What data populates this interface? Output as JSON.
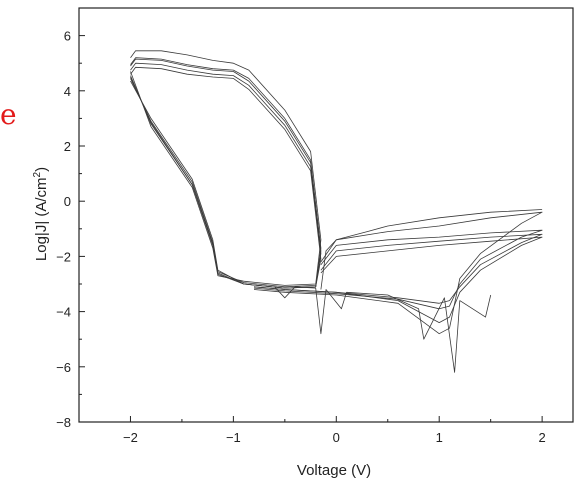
{
  "chart_data": {
    "type": "line",
    "title": "",
    "xlabel": "Voltage (V)",
    "ylabel_main": "Log|J| (A/cm",
    "ylabel_sup": "2",
    "ylabel_close": ")",
    "xlim": [
      -2.5,
      2.3
    ],
    "ylim": [
      -8,
      7
    ],
    "xticks": [
      -2,
      -1,
      0,
      1,
      2
    ],
    "xtick_labels": [
      "−2",
      "−1",
      "0",
      "1",
      "2"
    ],
    "yticks": [
      6,
      4,
      2,
      0,
      -2,
      -4,
      -6,
      -8
    ],
    "ytick_labels": [
      "6",
      "4",
      "2",
      "0",
      "−2",
      "−4",
      "−6",
      "−8"
    ],
    "grid": false,
    "legend": "none",
    "stray_text": "e",
    "series": [
      {
        "x": [
          -2,
          -1.95,
          -1.7,
          -1.45,
          -1.2,
          -1.0,
          -0.85,
          -0.5,
          -0.25,
          -0.15,
          -0.2,
          -0.5,
          -0.9,
          -1.15,
          -1.2,
          -1.4,
          -1.8,
          -2.0
        ],
        "y": [
          4.9,
          5.15,
          5.1,
          4.9,
          4.75,
          4.7,
          4.35,
          2.9,
          1.4,
          -1.7,
          -3.1,
          -3.15,
          -3.0,
          -2.6,
          -1.6,
          0.6,
          2.8,
          4.55
        ]
      },
      {
        "x": [
          -2,
          -1.95,
          -1.7,
          -1.45,
          -1.2,
          -1.0,
          -0.85,
          -0.5,
          -0.25,
          -0.15,
          -0.2,
          -0.5,
          -0.9,
          -1.15,
          -1.2,
          -1.4,
          -1.8,
          -2.0
        ],
        "y": [
          4.75,
          5.0,
          4.95,
          4.75,
          4.6,
          4.55,
          4.2,
          2.75,
          1.25,
          -1.9,
          -3.05,
          -3.1,
          -2.95,
          -2.55,
          -1.5,
          0.7,
          2.9,
          4.45
        ]
      },
      {
        "x": [
          -2,
          -1.95,
          -1.7,
          -1.45,
          -1.2,
          -1.0,
          -0.85,
          -0.5,
          -0.25,
          -0.15,
          -0.2,
          -0.5,
          -0.9,
          -1.15,
          -1.2,
          -1.4,
          -1.8,
          -2.0
        ],
        "y": [
          4.6,
          4.85,
          4.8,
          4.6,
          4.5,
          4.45,
          4.05,
          2.6,
          1.1,
          -2.1,
          -3.1,
          -3.15,
          -3.0,
          -2.5,
          -1.4,
          0.8,
          3.0,
          4.35
        ]
      },
      {
        "x": [
          -2,
          -1.95,
          -1.7,
          -1.45,
          -1.2,
          -1.0,
          -0.85,
          -0.5,
          -0.25,
          -0.15,
          -0.2,
          -0.5,
          -0.9,
          -1.15,
          -1.2,
          -1.4,
          -1.8,
          -2.0
        ],
        "y": [
          5.2,
          5.45,
          5.45,
          5.3,
          5.1,
          5.0,
          4.75,
          3.3,
          1.8,
          -1.4,
          -3.0,
          -3.05,
          -2.9,
          -2.7,
          -1.7,
          0.5,
          2.7,
          4.7
        ]
      },
      {
        "x": [
          -2,
          -1.95,
          -1.7,
          -1.45,
          -1.2,
          -1.0,
          -0.85,
          -0.5,
          -0.25,
          -0.15,
          -0.2,
          -0.5,
          -0.9,
          -1.15,
          -1.2,
          -1.4,
          -1.8,
          -2.0
        ],
        "y": [
          4.95,
          5.2,
          5.15,
          4.95,
          4.8,
          4.75,
          4.45,
          3.0,
          1.5,
          -1.8,
          -3.1,
          -3.15,
          -3.0,
          -2.65,
          -1.55,
          0.6,
          2.85,
          4.5
        ]
      },
      {
        "x": [
          -0.15,
          0.0,
          0.5,
          1.0,
          1.5,
          2.0,
          1.8,
          1.4,
          1.2,
          1.1,
          1.0,
          0.6,
          0.0,
          -0.5,
          -0.8
        ],
        "y": [
          -2.5,
          -1.8,
          -1.6,
          -1.45,
          -1.3,
          -1.2,
          -1.5,
          -2.3,
          -3.1,
          -3.6,
          -3.7,
          -3.5,
          -3.3,
          -3.2,
          -3.1
        ]
      },
      {
        "x": [
          -0.15,
          0.0,
          0.5,
          1.0,
          1.5,
          2.0,
          1.8,
          1.4,
          1.2,
          1.1,
          1.0,
          0.6,
          0.0,
          -0.5,
          -0.8
        ],
        "y": [
          -2.3,
          -1.6,
          -1.4,
          -1.3,
          -1.15,
          -1.05,
          -1.3,
          -2.1,
          -3.0,
          -3.8,
          -3.9,
          -3.55,
          -3.35,
          -3.25,
          -3.15
        ]
      },
      {
        "x": [
          -0.15,
          0.0,
          0.5,
          1.0,
          1.5,
          2.0,
          1.8,
          1.4,
          1.2,
          1.1,
          1.0,
          0.6,
          0.0,
          -0.5,
          -0.8
        ],
        "y": [
          -2.6,
          -2.0,
          -1.8,
          -1.6,
          -1.45,
          -1.3,
          -1.6,
          -2.5,
          -3.3,
          -4.2,
          -4.4,
          -3.6,
          -3.3,
          -3.2,
          -3.1
        ]
      },
      {
        "x": [
          -0.15,
          0.0,
          0.5,
          1.0,
          1.5,
          2.0,
          1.8,
          1.4,
          1.2,
          1.1,
          1.0,
          0.6,
          0.0,
          -0.5,
          -0.8
        ],
        "y": [
          -2.2,
          -1.4,
          -1.1,
          -0.9,
          -0.6,
          -0.4,
          -0.8,
          -1.9,
          -2.8,
          -4.6,
          -4.8,
          -3.7,
          -3.4,
          -3.3,
          -3.2
        ]
      },
      {
        "x": [
          -0.15,
          -0.1,
          0.0,
          0.3,
          0.5,
          1.0,
          1.5,
          2.0
        ],
        "y": [
          -3.2,
          -1.8,
          -1.4,
          -1.1,
          -0.9,
          -0.6,
          -0.4,
          -0.3
        ]
      },
      {
        "x": [
          -0.6,
          -0.5,
          -0.4,
          -0.2,
          -0.15,
          -0.1,
          0.05,
          0.1,
          0.5,
          0.8,
          0.85,
          1.05,
          1.15,
          1.2,
          1.45,
          1.5
        ],
        "y": [
          -3.1,
          -3.5,
          -3.1,
          -3.15,
          -4.8,
          -3.2,
          -3.9,
          -3.3,
          -3.4,
          -3.9,
          -5.0,
          -3.5,
          -6.2,
          -3.6,
          -4.2,
          -3.4
        ]
      }
    ]
  }
}
